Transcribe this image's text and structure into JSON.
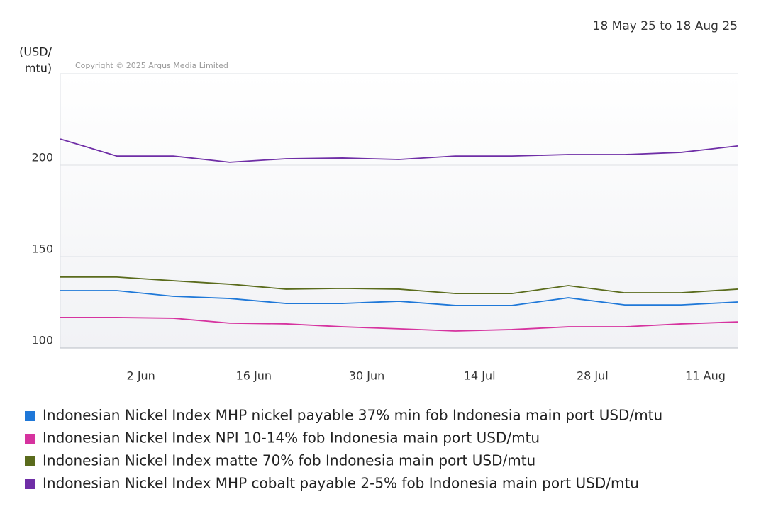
{
  "chart_data": {
    "type": "line",
    "date_range": "18 May 25 to 18 Aug 25",
    "y_label_lines": [
      "(USD/",
      "mtu)"
    ],
    "copyright": "Copyright © 2025 Argus Media Limited",
    "x": [
      "2025-05-23",
      "2025-05-30",
      "2025-06-06",
      "2025-06-13",
      "2025-06-20",
      "2025-06-27",
      "2025-07-04",
      "2025-07-11",
      "2025-07-18",
      "2025-07-25",
      "2025-08-01",
      "2025-08-08",
      "2025-08-15"
    ],
    "xlim": [
      "2025-05-23",
      "2025-08-15"
    ],
    "xticks": [
      {
        "value": "2025-06-02",
        "label": "2 Jun"
      },
      {
        "value": "2025-06-16",
        "label": "16 Jun"
      },
      {
        "value": "2025-06-30",
        "label": "30 Jun"
      },
      {
        "value": "2025-07-14",
        "label": "14 Jul"
      },
      {
        "value": "2025-07-28",
        "label": "28 Jul"
      },
      {
        "value": "2025-08-11",
        "label": "11 Aug"
      }
    ],
    "ylim": [
      100,
      250
    ],
    "yticks": [
      100,
      150,
      200
    ],
    "grid": true,
    "series": [
      {
        "name": "Indonesian Nickel Index MHP nickel payable 37% min fob Indonesia main port USD/mtu",
        "color": "#1f78d8",
        "values": [
          131.4,
          131.4,
          128.3,
          127.1,
          124.4,
          124.4,
          125.6,
          123.3,
          123.3,
          127.5,
          123.6,
          123.6,
          125.2
        ]
      },
      {
        "name": "Indonesian Nickel Index NPI 10-14% fob Indonesia main port USD/mtu",
        "color": "#d6339f",
        "values": [
          116.7,
          116.7,
          116.3,
          113.6,
          113.2,
          111.6,
          110.5,
          109.3,
          110.1,
          111.6,
          111.6,
          113.2,
          114.3
        ]
      },
      {
        "name": "Indonesian Nickel Index matte 70% fob Indonesia main port USD/mtu",
        "color": "#5a6b1c",
        "values": [
          138.8,
          138.8,
          136.8,
          134.9,
          132.2,
          132.6,
          132.2,
          129.8,
          129.8,
          134.1,
          130.2,
          130.2,
          132.2
        ]
      },
      {
        "name": "Indonesian Nickel Index MHP cobalt payable 2-5% fob Indonesia main port USD/mtu",
        "color": "#6f2ea6",
        "values": [
          214.3,
          205.0,
          205.0,
          201.6,
          203.5,
          203.9,
          203.1,
          205.0,
          205.0,
          205.8,
          205.8,
          207.0,
          210.5
        ]
      }
    ]
  }
}
